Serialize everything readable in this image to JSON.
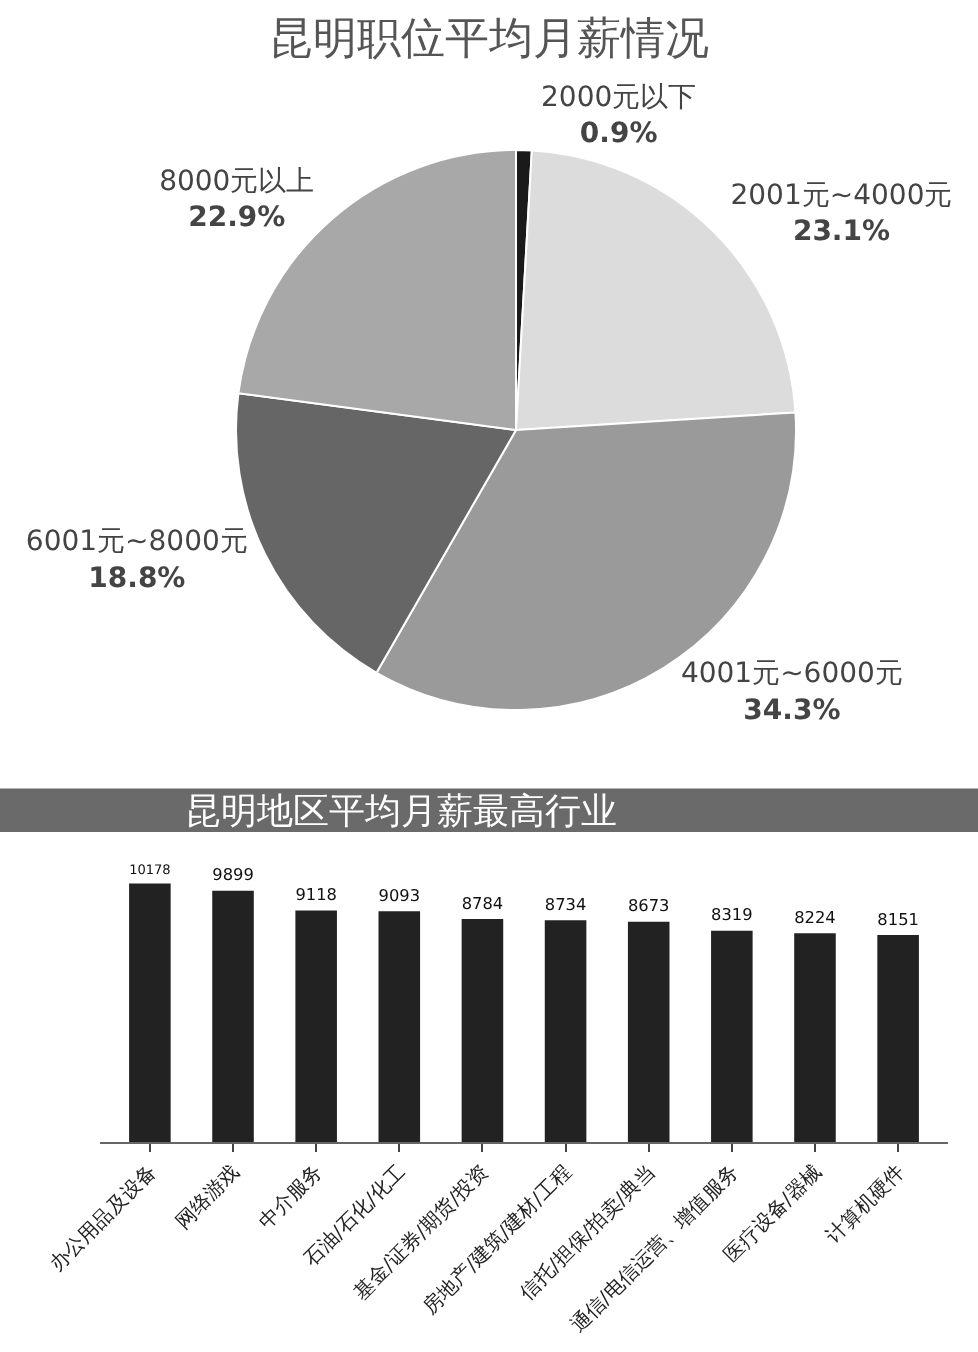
{
  "chart_data": [
    {
      "type": "pie",
      "title": "昆明职位平均月薪情况",
      "categories": [
        "2000元以下",
        "2001元~4000元",
        "4001元~6000元",
        "6001元~8000元",
        "8000元以上"
      ],
      "values": [
        0.9,
        23.1,
        34.3,
        18.8,
        22.9
      ],
      "colors": [
        "#1a1a1a",
        "#dcdcdc",
        "#9a9a9a",
        "#666666",
        "#a8a8a8"
      ],
      "value_labels": [
        "0.9%",
        "23.1%",
        "34.3%",
        "18.8%",
        "22.9%"
      ]
    },
    {
      "type": "bar",
      "title": "昆明地区平均月薪最高行业",
      "categories": [
        "办公用品及设备",
        "网络游戏",
        "中介服务",
        "石油/石化/化工",
        "基金/证券/期货/投资",
        "房地产/建筑/建材/工程",
        "信托/担保/拍卖/典当",
        "通信/电信运营、增值服务",
        "医疗设备/器械",
        "计算机硬件"
      ],
      "values": [
        10178,
        9899,
        9118,
        9093,
        8784,
        8734,
        8673,
        8319,
        8224,
        8151
      ],
      "color": "#222222",
      "data_labels": true,
      "tick_labels": "x"
    }
  ]
}
